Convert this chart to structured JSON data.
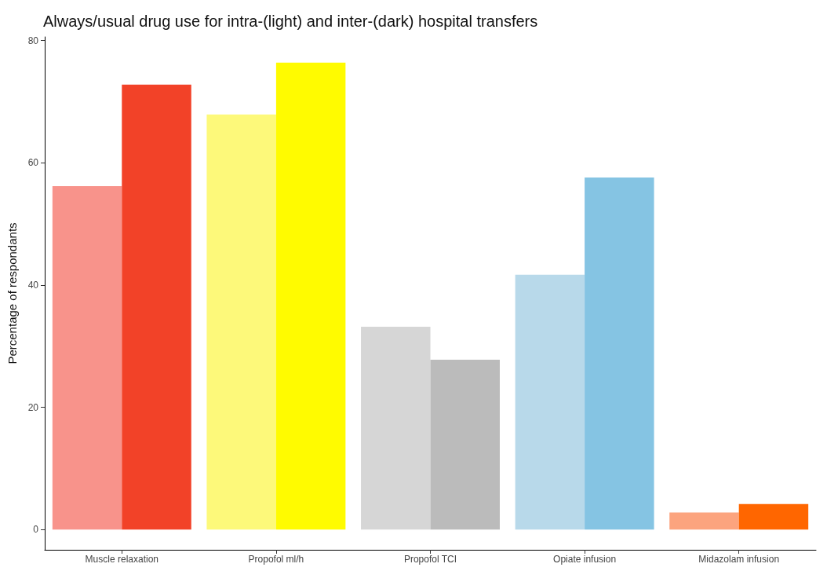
{
  "chart_data": {
    "type": "bar",
    "title": "Always/usual drug use for intra-(light) and inter-(dark) hospital transfers",
    "ylabel": "Percentage of respondants",
    "categories": [
      "Muscle relaxation",
      "Propofol ml/h",
      "Propofol TCI",
      "Opiate infusion",
      "Midazolam infusion"
    ],
    "series": [
      {
        "colors": [
          "#f8938b",
          "#fdf97a",
          "#d6d6d6",
          "#b8d9ea",
          "#fca47e"
        ],
        "values": [
          56.2,
          67.9,
          33.2,
          41.7,
          2.8
        ]
      },
      {
        "colors": [
          "#f24228",
          "#fffb00",
          "#bbbbbb",
          "#85c4e3",
          "#ff6600"
        ],
        "values": [
          72.8,
          76.4,
          27.8,
          57.6,
          4.2
        ]
      }
    ],
    "ylim": [
      -3.3,
      80.6
    ],
    "yticks": [
      0,
      20,
      40,
      60,
      80
    ],
    "grid": false
  }
}
